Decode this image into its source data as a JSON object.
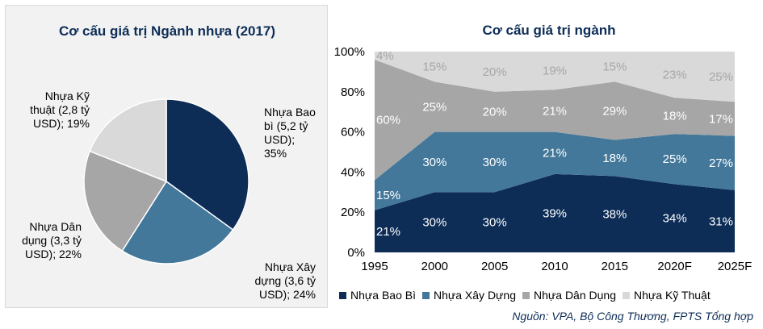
{
  "colors": {
    "bao_bi": "#0d2d57",
    "xay_dung": "#43789a",
    "dan_dung": "#a6a6a6",
    "ky_thuat": "#d9d9d9",
    "title": "#0d2d57"
  },
  "chart_data": [
    {
      "type": "pie",
      "title": "Cơ cấu giá trị Ngành nhựa (2017)",
      "slices": [
        {
          "name": "Nhựa Bao bì",
          "value": 35,
          "label": "Nhựa Bao\nbì (5,2 tỷ\nUSD);\n35%"
        },
        {
          "name": "Nhựa Xây dựng",
          "value": 24,
          "label": "Nhựa Xây\ndựng (3,6 tỷ\nUSD); 24%"
        },
        {
          "name": "Nhựa Dân dụng",
          "value": 22,
          "label": "Nhựa Dân\ndụng (3,3 tỷ\nUSD); 22%"
        },
        {
          "name": "Nhựa Kỹ thuật",
          "value": 19,
          "label": "Nhựa Kỹ\nthuật (2,8 tỷ\nUSD); 19%"
        }
      ]
    },
    {
      "type": "area",
      "stacked": true,
      "title": "Cơ cấu giá trị ngành",
      "x": [
        "1995",
        "2000",
        "2005",
        "2010",
        "2015",
        "2020F",
        "2025F"
      ],
      "ylim": [
        0,
        100
      ],
      "yticks": [
        "0%",
        "20%",
        "40%",
        "60%",
        "80%",
        "100%"
      ],
      "grid": false,
      "legend": "bottom",
      "series": [
        {
          "name": "Nhựa Bao Bì",
          "values": [
            21,
            30,
            30,
            39,
            38,
            34,
            31
          ]
        },
        {
          "name": "Nhựa Xây Dựng",
          "values": [
            15,
            30,
            30,
            21,
            18,
            25,
            27
          ]
        },
        {
          "name": "Nhựa Dân Dụng",
          "values": [
            60,
            25,
            20,
            21,
            29,
            18,
            17
          ]
        },
        {
          "name": "Nhựa Kỹ Thuật",
          "values": [
            4,
            15,
            20,
            19,
            15,
            23,
            25
          ]
        }
      ]
    }
  ],
  "source": "Nguồn: VPA, Bộ Công Thương, FPTS Tổng hợp"
}
